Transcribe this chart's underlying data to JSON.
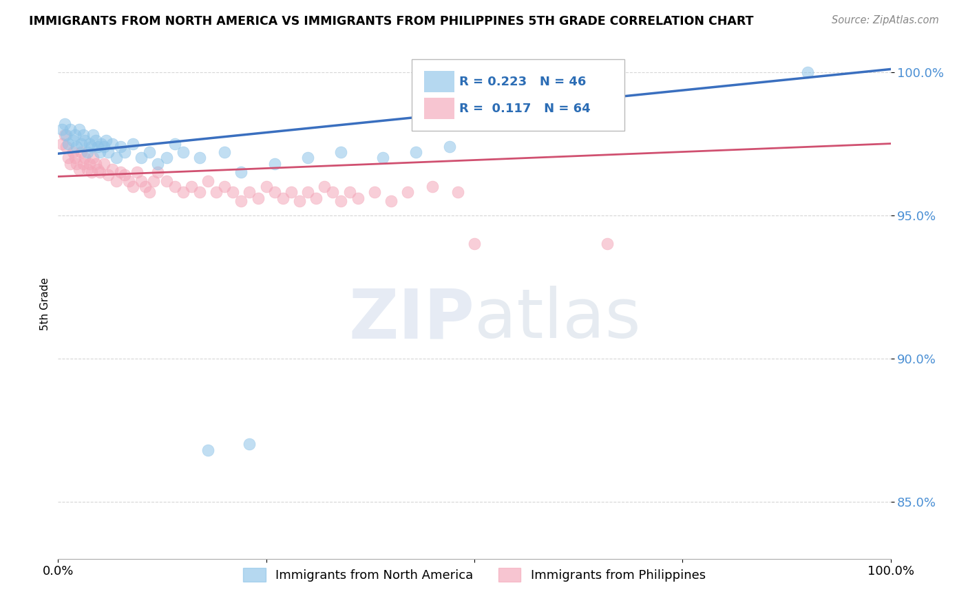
{
  "title": "IMMIGRANTS FROM NORTH AMERICA VS IMMIGRANTS FROM PHILIPPINES 5TH GRADE CORRELATION CHART",
  "source_text": "Source: ZipAtlas.com",
  "ylabel": "5th Grade",
  "legend_blue_label": "Immigrants from North America",
  "legend_pink_label": "Immigrants from Philippines",
  "R_blue": 0.223,
  "N_blue": 46,
  "R_pink": 0.117,
  "N_pink": 64,
  "xlim": [
    0.0,
    1.0
  ],
  "ylim": [
    0.83,
    1.008
  ],
  "yticks": [
    0.85,
    0.9,
    0.95,
    1.0
  ],
  "ytick_labels": [
    "85.0%",
    "90.0%",
    "95.0%",
    "100.0%"
  ],
  "xticks": [
    0.0,
    0.25,
    0.5,
    0.75,
    1.0
  ],
  "xtick_labels": [
    "0.0%",
    "",
    "",
    "",
    "100.0%"
  ],
  "color_blue": "#8ec4e8",
  "color_pink": "#f4a7b9",
  "line_color_blue": "#3a6fbf",
  "line_color_pink": "#d05070",
  "watermark_text": "ZIPatlas",
  "blue_trend_x": [
    0.0,
    1.0
  ],
  "blue_trend_y": [
    0.9715,
    1.001
  ],
  "pink_trend_x": [
    0.0,
    1.0
  ],
  "pink_trend_y": [
    0.9635,
    0.975
  ],
  "blue_x": [
    0.005,
    0.008,
    0.01,
    0.012,
    0.015,
    0.018,
    0.02,
    0.022,
    0.025,
    0.028,
    0.03,
    0.032,
    0.035,
    0.038,
    0.04,
    0.042,
    0.045,
    0.048,
    0.05,
    0.052,
    0.055,
    0.058,
    0.06,
    0.065,
    0.07,
    0.075,
    0.08,
    0.09,
    0.1,
    0.11,
    0.12,
    0.13,
    0.15,
    0.17,
    0.2,
    0.23,
    0.26,
    0.3,
    0.34,
    0.39,
    0.43,
    0.47,
    0.18,
    0.22,
    0.14,
    0.9
  ],
  "blue_y": [
    0.98,
    0.982,
    0.978,
    0.975,
    0.98,
    0.976,
    0.978,
    0.974,
    0.98,
    0.975,
    0.978,
    0.976,
    0.972,
    0.975,
    0.974,
    0.978,
    0.976,
    0.974,
    0.972,
    0.975,
    0.974,
    0.976,
    0.972,
    0.975,
    0.97,
    0.974,
    0.972,
    0.975,
    0.97,
    0.972,
    0.968,
    0.97,
    0.972,
    0.97,
    0.972,
    0.87,
    0.968,
    0.97,
    0.972,
    0.97,
    0.972,
    0.974,
    0.868,
    0.965,
    0.975,
    1.0
  ],
  "pink_x": [
    0.005,
    0.008,
    0.01,
    0.012,
    0.015,
    0.018,
    0.02,
    0.022,
    0.025,
    0.028,
    0.03,
    0.032,
    0.035,
    0.038,
    0.04,
    0.042,
    0.045,
    0.048,
    0.05,
    0.055,
    0.06,
    0.065,
    0.07,
    0.075,
    0.08,
    0.085,
    0.09,
    0.095,
    0.1,
    0.105,
    0.11,
    0.115,
    0.12,
    0.13,
    0.14,
    0.15,
    0.16,
    0.17,
    0.18,
    0.19,
    0.2,
    0.21,
    0.22,
    0.23,
    0.24,
    0.25,
    0.26,
    0.27,
    0.28,
    0.29,
    0.3,
    0.31,
    0.32,
    0.33,
    0.34,
    0.35,
    0.36,
    0.38,
    0.4,
    0.42,
    0.45,
    0.48,
    0.5,
    0.66
  ],
  "pink_y": [
    0.975,
    0.978,
    0.974,
    0.97,
    0.968,
    0.972,
    0.97,
    0.968,
    0.966,
    0.972,
    0.968,
    0.97,
    0.966,
    0.968,
    0.965,
    0.97,
    0.968,
    0.966,
    0.965,
    0.968,
    0.964,
    0.966,
    0.962,
    0.965,
    0.964,
    0.962,
    0.96,
    0.965,
    0.962,
    0.96,
    0.958,
    0.962,
    0.965,
    0.962,
    0.96,
    0.958,
    0.96,
    0.958,
    0.962,
    0.958,
    0.96,
    0.958,
    0.955,
    0.958,
    0.956,
    0.96,
    0.958,
    0.956,
    0.958,
    0.955,
    0.958,
    0.956,
    0.96,
    0.958,
    0.955,
    0.958,
    0.956,
    0.958,
    0.955,
    0.958,
    0.96,
    0.958,
    0.94,
    0.94
  ]
}
